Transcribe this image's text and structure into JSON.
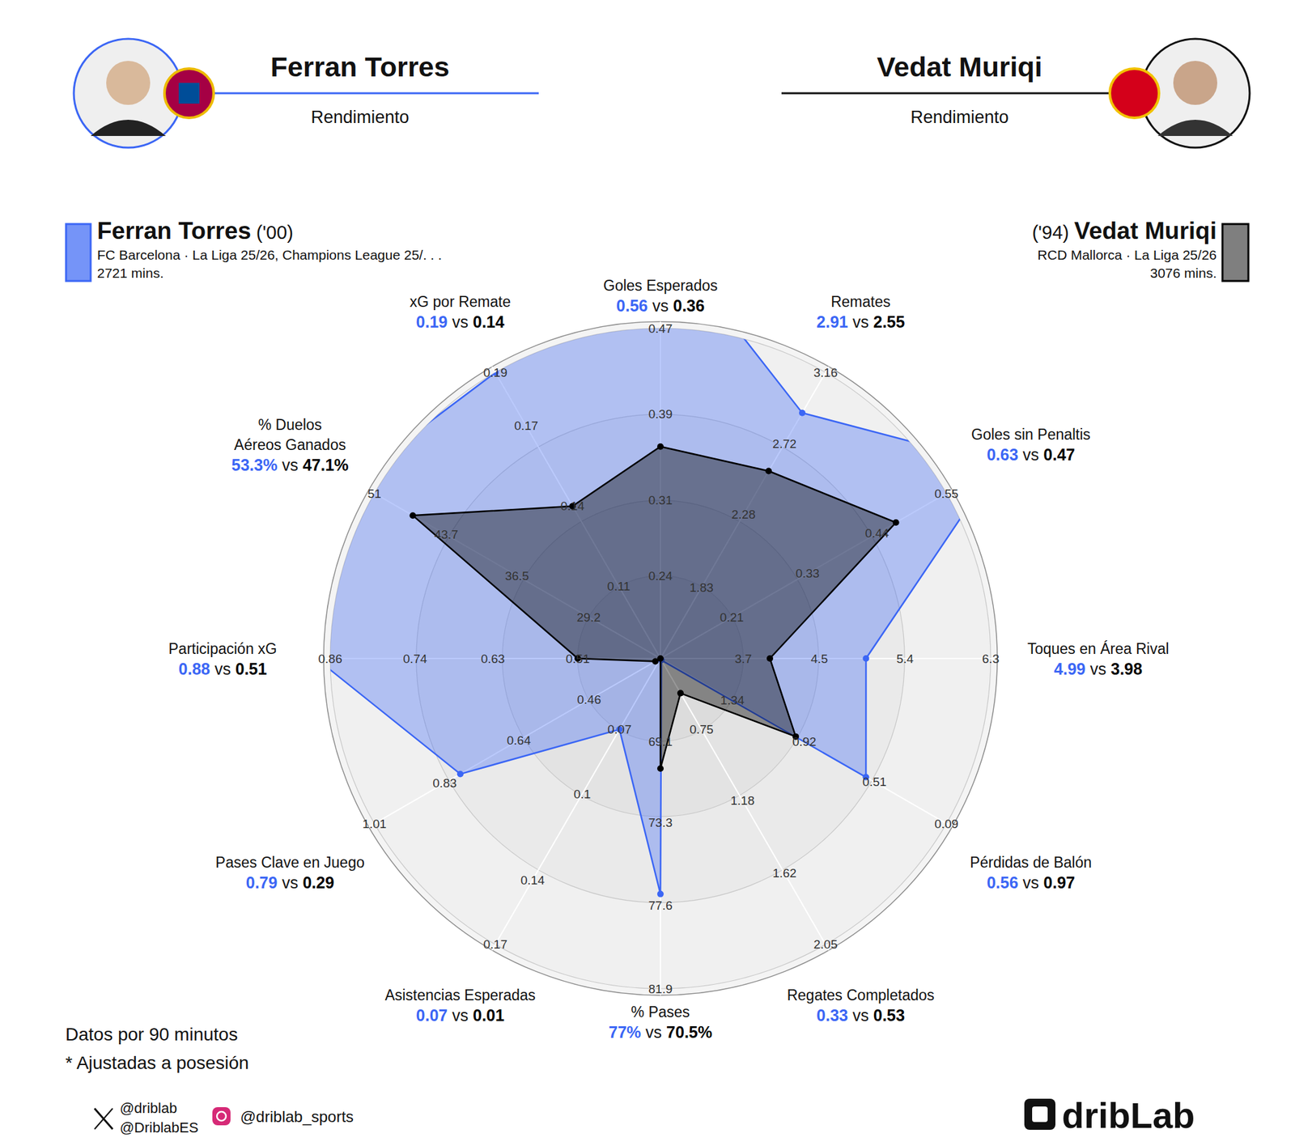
{
  "header": {
    "left": {
      "name": "Ferran Torres",
      "subtitle": "Rendimiento"
    },
    "right": {
      "name": "Vedat Muriqi",
      "subtitle": "Rendimiento"
    }
  },
  "players": [
    {
      "year": "('00)",
      "info": "FC Barcelona · La Liga 25/26, Champions League 25/. . .",
      "minutes": "2721 mins."
    },
    {
      "year": "('94)",
      "info": "RCD Mallorca · La Liga 25/26",
      "minutes": "3076 mins."
    }
  ],
  "chart_data": {
    "type": "radar",
    "categories": [
      "Goles Esperados",
      "Remates",
      "Goles sin Penaltis",
      "Toques en Área Rival",
      "Pérdidas de Balón",
      "Regates Completados",
      "% Pases",
      "Asistencias Esperadas",
      "Pases Clave en Juego",
      "Participación xG",
      "% Duelos Aéreos Ganados",
      "xG por Remate"
    ],
    "separator": "vs",
    "series": [
      {
        "name": "Ferran Torres",
        "color": "#3b66f5",
        "marker": "circle",
        "values": [
          0.56,
          2.91,
          0.63,
          4.99,
          0.56,
          0.33,
          77,
          0.07,
          0.79,
          0.88,
          53.3,
          0.19
        ],
        "value_labels": [
          "0.56",
          "2.91",
          "0.63",
          "4.99",
          "0.56",
          "0.33",
          "77%",
          "0.07",
          "0.79",
          "0.88",
          "53.3%",
          "0.19"
        ]
      },
      {
        "name": "Vedat Muriqi",
        "color": "#000000",
        "marker": "circle",
        "values": [
          0.36,
          2.55,
          0.47,
          3.98,
          0.97,
          0.53,
          70.5,
          0.01,
          0.29,
          0.51,
          47.1,
          0.14
        ],
        "value_labels": [
          "0.36",
          "2.55",
          "0.47",
          "3.98",
          "0.97",
          "0.53",
          "70.5%",
          "0.01",
          "0.29",
          "0.51",
          "47.1%",
          "0.14"
        ]
      }
    ],
    "axes": [
      {
        "lim": [
          0.163,
          0.47
        ],
        "ticks": [
          0.24,
          0.31,
          0.39,
          0.47
        ]
      },
      {
        "lim": [
          1.39,
          3.16
        ],
        "ticks": [
          1.83,
          2.28,
          2.72,
          3.16
        ]
      },
      {
        "lim": [
          0.097,
          0.55
        ],
        "ticks": [
          0.21,
          0.33,
          0.44,
          0.55
        ]
      },
      {
        "lim": [
          2.83,
          6.3
        ],
        "ticks": [
          3.7,
          4.5,
          5.4,
          6.3
        ]
      },
      {
        "lim": [
          1.76,
          0.09
        ],
        "ticks": [
          1.34,
          0.92,
          0.51,
          0.09
        ]
      },
      {
        "lim": [
          0.32,
          2.05
        ],
        "ticks": [
          0.75,
          1.18,
          1.62,
          2.05
        ]
      },
      {
        "lim": [
          64.8,
          81.9
        ],
        "ticks": [
          69.1,
          73.3,
          77.6,
          81.9
        ]
      },
      {
        "lim": [
          0.037,
          0.17
        ],
        "ticks": [
          0.07,
          0.1,
          0.14,
          0.17
        ]
      },
      {
        "lim": [
          0.277,
          1.01
        ],
        "ticks": [
          0.46,
          0.64,
          0.83,
          1.01
        ]
      },
      {
        "lim": [
          0.393,
          0.86
        ],
        "ticks": [
          0.51,
          0.63,
          0.74,
          0.86
        ]
      },
      {
        "lim": [
          21.9,
          51
        ],
        "ticks": [
          29.2,
          36.5,
          43.7,
          51
        ]
      },
      {
        "lim": [
          0.083,
          0.19
        ],
        "ticks": [
          0.11,
          0.14,
          0.17,
          0.19
        ]
      }
    ]
  },
  "footer": {
    "notes": [
      "Datos por 90 minutos",
      "* Ajustadas a posesión"
    ],
    "social": {
      "x": [
        "@driblab",
        "@DriblabES"
      ],
      "instagram": "@driblab_sports"
    },
    "logo": "dribLab"
  }
}
